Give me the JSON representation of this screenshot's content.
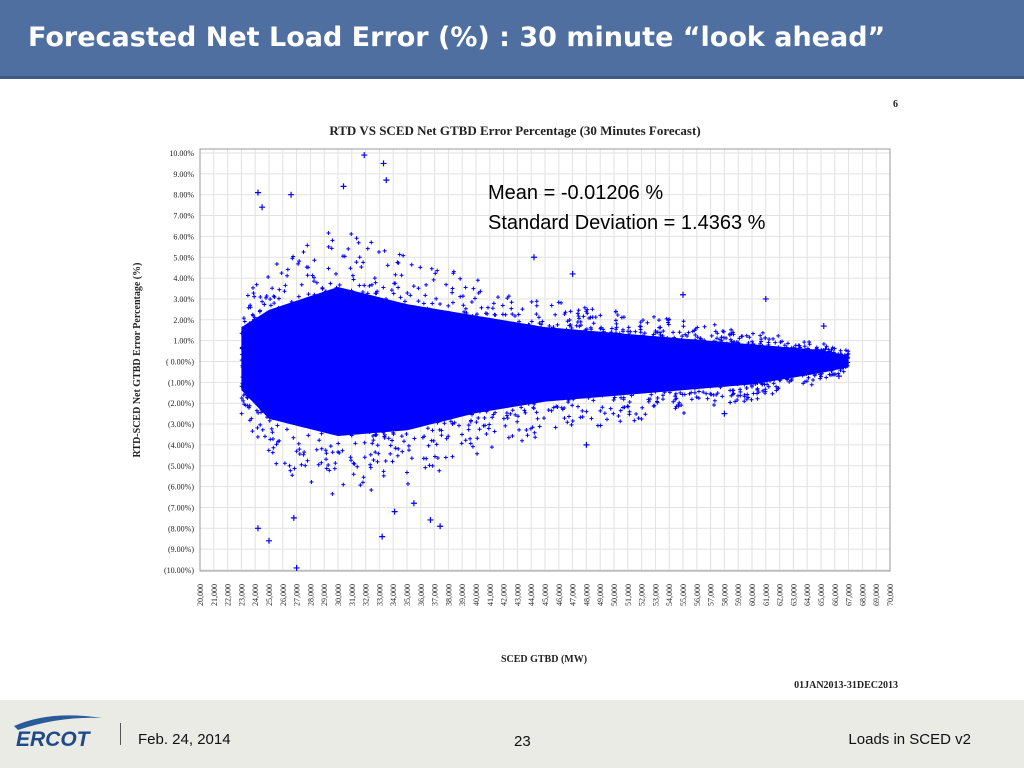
{
  "slide": {
    "title": "Forecasted Net Load Error (%) : 30 minute “look ahead”"
  },
  "footer": {
    "logo_text": "ERCOT",
    "date": "Feb. 24, 2014",
    "page_number": "23",
    "doc_title": "Loads in SCED v2"
  },
  "chart_data": {
    "type": "scatter",
    "title": "RTD VS SCED Net GTBD Error Percentage (30 Minutes Forecast)",
    "xlabel": "SCED GTBD (MW)",
    "ylabel": "RTD-SCED Net GTBD Error Percentage (%)",
    "corner_label": "6",
    "date_range": "01JAN2013-31DEC2013",
    "marker": "+",
    "marker_color": "#0000ff",
    "xlim": [
      20000,
      70000
    ],
    "ylim": [
      -10,
      10
    ],
    "x_ticks": [
      "20,000",
      "21,000",
      "22,000",
      "23,000",
      "24,000",
      "25,000",
      "26,000",
      "27,000",
      "28,000",
      "29,000",
      "30,000",
      "31,000",
      "32,000",
      "33,000",
      "34,000",
      "35,000",
      "36,000",
      "37,000",
      "38,000",
      "39,000",
      "40,000",
      "41,000",
      "42,000",
      "43,000",
      "44,000",
      "45,000",
      "46,000",
      "47,000",
      "48,000",
      "49,000",
      "50,000",
      "51,000",
      "52,000",
      "53,000",
      "54,000",
      "55,000",
      "56,000",
      "57,000",
      "58,000",
      "59,000",
      "60,000",
      "61,000",
      "62,000",
      "63,000",
      "64,000",
      "65,000",
      "66,000",
      "67,000",
      "68,000",
      "69,000",
      "70,000"
    ],
    "y_ticks": [
      "10.00%",
      "9.00%",
      "8.00%",
      "7.00%",
      "6.00%",
      "5.00%",
      "4.00%",
      "3.00%",
      "2.00%",
      "1.00%",
      "( 0.00%)",
      "(1.00%)",
      "(2.00%)",
      "(3.00%)",
      "(4.00%)",
      "(5.00%)",
      "(6.00%)",
      "(7.00%)",
      "(8.00%)",
      "(9.00%)",
      "(10.00%)"
    ],
    "grid": true,
    "annotations": [
      "Mean = -0.01206 %",
      "Standard Deviation = 1.4363 %"
    ],
    "stats": {
      "mean_pct": -0.01206,
      "std_dev_pct": 1.4363
    },
    "x_extent": [
      23000,
      67000
    ],
    "spread_envelope": [
      {
        "x": 23000,
        "upper": 3.0,
        "lower": -2.5
      },
      {
        "x": 25000,
        "upper": 4.5,
        "lower": -5.0
      },
      {
        "x": 30000,
        "upper": 6.5,
        "lower": -6.5
      },
      {
        "x": 35000,
        "upper": 5.0,
        "lower": -6.0
      },
      {
        "x": 40000,
        "upper": 4.0,
        "lower": -4.5
      },
      {
        "x": 45000,
        "upper": 3.0,
        "lower": -3.5
      },
      {
        "x": 50000,
        "upper": 2.5,
        "lower": -3.0
      },
      {
        "x": 55000,
        "upper": 2.0,
        "lower": -2.5
      },
      {
        "x": 60000,
        "upper": 1.5,
        "lower": -2.0
      },
      {
        "x": 65000,
        "upper": 1.0,
        "lower": -1.0
      },
      {
        "x": 67000,
        "upper": 0.5,
        "lower": -0.5
      }
    ],
    "outliers": [
      {
        "x": 31900,
        "y": 9.9
      },
      {
        "x": 33300,
        "y": 9.5
      },
      {
        "x": 33500,
        "y": 8.7
      },
      {
        "x": 24200,
        "y": 8.1
      },
      {
        "x": 26600,
        "y": 8.0
      },
      {
        "x": 30400,
        "y": 8.4
      },
      {
        "x": 24500,
        "y": 7.4
      },
      {
        "x": 26800,
        "y": -7.5
      },
      {
        "x": 24200,
        "y": -8.0
      },
      {
        "x": 25000,
        "y": -8.6
      },
      {
        "x": 27000,
        "y": -9.9
      },
      {
        "x": 34100,
        "y": -7.2
      },
      {
        "x": 35500,
        "y": -6.8
      },
      {
        "x": 36700,
        "y": -7.6
      },
      {
        "x": 37400,
        "y": -7.9
      },
      {
        "x": 33200,
        "y": -8.4
      },
      {
        "x": 44200,
        "y": 5.0
      },
      {
        "x": 47000,
        "y": 4.2
      },
      {
        "x": 55000,
        "y": 3.2
      },
      {
        "x": 61000,
        "y": 3.0
      },
      {
        "x": 65200,
        "y": 1.7
      },
      {
        "x": 48000,
        "y": -4.0
      },
      {
        "x": 58000,
        "y": -2.5
      },
      {
        "x": 66300,
        "y": -0.7
      }
    ]
  }
}
